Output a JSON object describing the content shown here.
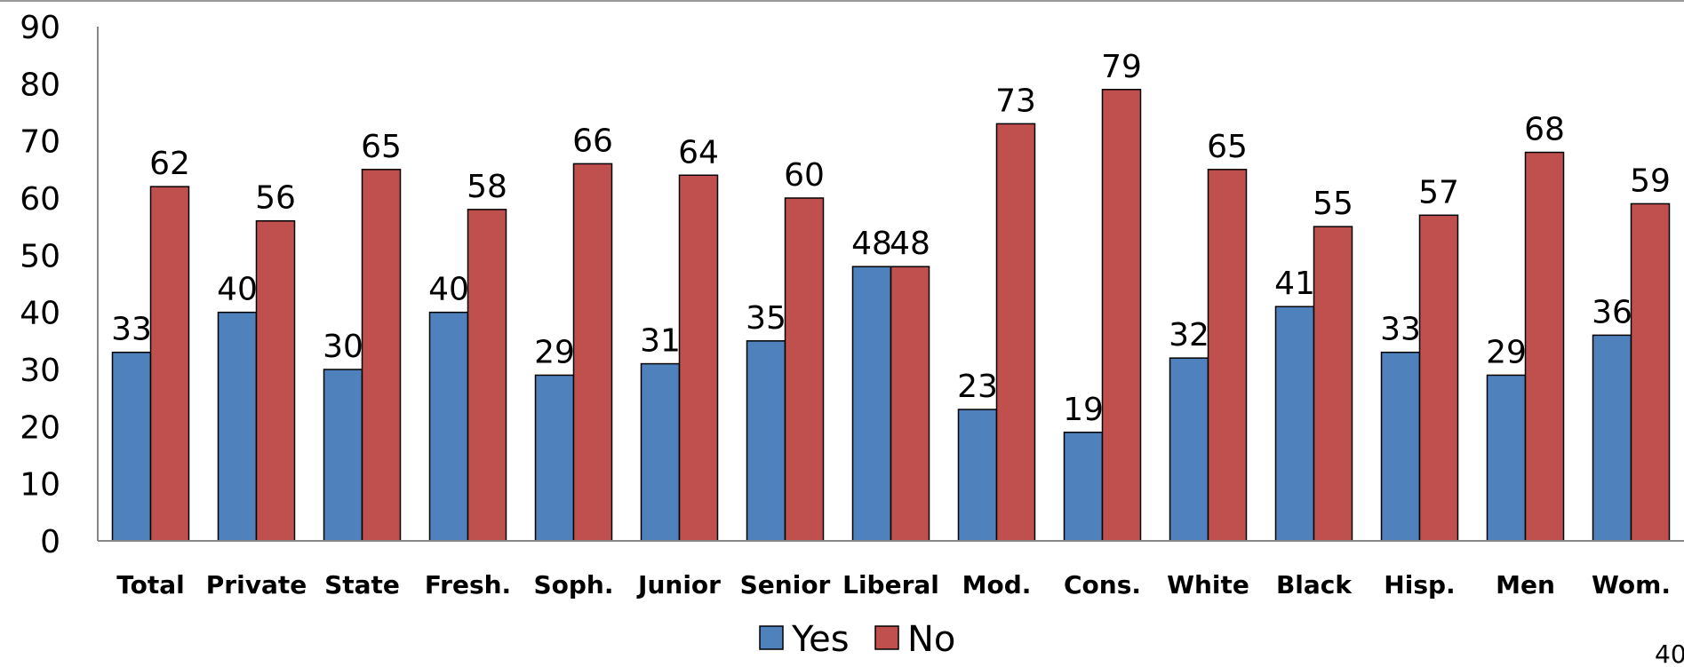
{
  "chart_data": {
    "type": "bar",
    "categories": [
      "Total",
      "Private",
      "State",
      "Fresh.",
      "Soph.",
      "Junior",
      "Senior",
      "Liberal",
      "Mod.",
      "Cons.",
      "White",
      "Black",
      "Hisp.",
      "Men",
      "Wom."
    ],
    "series": [
      {
        "name": "Yes",
        "color": "#4F81BD",
        "values": [
          33,
          40,
          30,
          40,
          29,
          31,
          35,
          48,
          23,
          19,
          32,
          41,
          33,
          29,
          36
        ]
      },
      {
        "name": "No",
        "color": "#C0504D",
        "values": [
          62,
          56,
          65,
          58,
          66,
          64,
          60,
          48,
          73,
          79,
          65,
          55,
          57,
          68,
          59
        ]
      }
    ],
    "ylim": [
      0,
      90
    ],
    "yticks": [
      0,
      10,
      20,
      30,
      40,
      50,
      60,
      70,
      80,
      90
    ],
    "grid": false,
    "legend": "bottom-center",
    "data_labels": true
  },
  "page_number": "40"
}
